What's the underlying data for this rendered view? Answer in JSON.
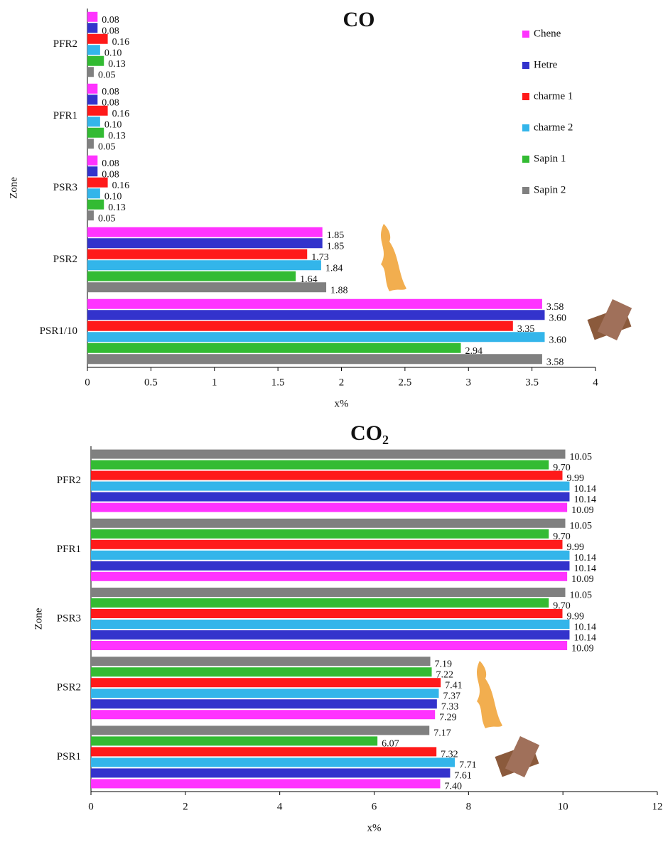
{
  "chart_data": [
    {
      "type": "barh",
      "title": "CO",
      "x_label": "x%",
      "y_label": "Zone",
      "legend": "upper right",
      "categories": [
        "PFR2",
        "PFR1",
        "PSR3",
        "PSR2",
        "PSR1/10"
      ],
      "xlim": [
        0,
        4
      ],
      "xticks": [
        0,
        0.5,
        1,
        1.5,
        2,
        2.5,
        3,
        3.5,
        4
      ],
      "series": [
        {
          "name": "Chene",
          "color": "#ff33ff",
          "values": [
            0.08,
            0.08,
            0.08,
            1.85,
            3.58
          ],
          "value_labels": [
            "0.08",
            "0.08",
            "0.08",
            "1.85",
            "3.58"
          ]
        },
        {
          "name": "Hetre",
          "color": "#3333cc",
          "values": [
            0.08,
            0.08,
            0.08,
            1.85,
            3.6
          ],
          "value_labels": [
            "0.08",
            "0.08",
            "0.08",
            "1.85",
            "3.60"
          ]
        },
        {
          "name": "charme 1",
          "color": "#ff1a1a",
          "values": [
            0.16,
            0.16,
            0.16,
            1.73,
            3.35
          ],
          "value_labels": [
            "0.16",
            "0.16",
            "0.16",
            "1.73",
            "3.35"
          ]
        },
        {
          "name": "charme 2",
          "color": "#33b5ea",
          "values": [
            0.1,
            0.1,
            0.1,
            1.84,
            3.6
          ],
          "value_labels": [
            "0.10",
            "0.10",
            "0.10",
            "1.84",
            "3.60"
          ]
        },
        {
          "name": "Sapin 1",
          "color": "#33bb33",
          "values": [
            0.13,
            0.13,
            0.13,
            1.64,
            2.94
          ],
          "value_labels": [
            "0.13",
            "0.13",
            "0.13",
            "1.64",
            "2.94"
          ]
        },
        {
          "name": "Sapin 2",
          "color": "#808080",
          "values": [
            0.05,
            0.05,
            0.05,
            1.88,
            3.58
          ],
          "value_labels": [
            "0.05",
            "0.05",
            "0.05",
            "1.88",
            "3.58"
          ]
        }
      ]
    },
    {
      "type": "barh",
      "title": "CO₂",
      "x_label": "x%",
      "y_label": "Zone",
      "categories": [
        "PFR2",
        "PFR1",
        "PSR3",
        "PSR2",
        "PSR1"
      ],
      "xlim": [
        0,
        12
      ],
      "xticks": [
        0,
        2,
        4,
        6,
        8,
        10,
        12
      ],
      "series": [
        {
          "color": "#808080",
          "values": [
            10.05,
            10.05,
            10.05,
            7.19,
            7.17
          ],
          "value_labels": [
            "10.05",
            "10.05",
            "10.05",
            "7.19",
            "7.17"
          ]
        },
        {
          "color": "#33bb33",
          "values": [
            9.7,
            9.7,
            9.7,
            7.22,
            6.07
          ],
          "value_labels": [
            "9.70",
            "9.70",
            "9.70",
            "7.22",
            "6.07"
          ]
        },
        {
          "color": "#ff1a1a",
          "values": [
            9.99,
            9.99,
            9.99,
            7.41,
            7.32
          ],
          "value_labels": [
            "9.99",
            "9.99",
            "9.99",
            "7.41",
            "7.32"
          ]
        },
        {
          "color": "#33b5ea",
          "values": [
            10.14,
            10.14,
            10.14,
            7.37,
            7.71
          ],
          "value_labels": [
            "10.14",
            "10.14",
            "10.14",
            "7.37",
            "7.71"
          ]
        },
        {
          "color": "#3333cc",
          "values": [
            10.14,
            10.14,
            10.14,
            7.33,
            7.61
          ],
          "value_labels": [
            "10.14",
            "10.14",
            "10.14",
            "7.33",
            "7.61"
          ]
        },
        {
          "color": "#ff33ff",
          "values": [
            10.09,
            10.09,
            10.09,
            7.29,
            7.4
          ],
          "value_labels": [
            "10.09",
            "10.09",
            "10.09",
            "7.29",
            "7.40"
          ]
        }
      ]
    }
  ]
}
